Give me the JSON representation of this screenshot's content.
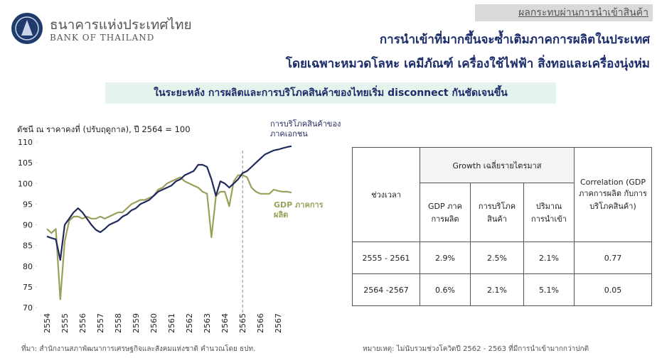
{
  "header": {
    "org_th": "ธนาคารแห่งประเทศไทย",
    "org_en": "BANK OF THAILAND",
    "section": "ผลกระทบผ่านการนำเข้าสินค้า",
    "title_1": "การนำเข้าที่มากขึ้นจะซ้ำเติมภาคการผลิตในประเทศ",
    "title_2": "โดยเฉพาะหมวดโลหะ เคมีภัณฑ์ เครื่องใช้ไฟฟ้า สิ่งทอและเครื่องนุ่งห่ม",
    "banner": "ในระยะหลัง การผลิตและการบริโภคสินค้าของไทยเริ่ม disconnect กันชัดเจนขึ้น"
  },
  "chart_data": {
    "type": "line",
    "subtitle": "ดัชนี ณ ราคาคงที่ (ปรับฤดูกาล), ปี 2564 = 100",
    "categories": [
      "2554",
      null,
      null,
      null,
      "2555",
      null,
      null,
      null,
      "2556",
      null,
      null,
      null,
      "2557",
      null,
      null,
      null,
      "2558",
      null,
      null,
      null,
      "2559",
      null,
      null,
      null,
      "2560",
      null,
      null,
      null,
      "2561",
      null,
      null,
      null,
      "2562",
      null,
      null,
      null,
      "2563",
      null,
      null,
      null,
      "2564",
      null,
      null,
      null,
      "2565",
      null,
      null,
      null,
      "2566",
      null,
      null,
      null,
      "2567",
      null,
      null,
      null
    ],
    "series": [
      {
        "name": "การบริโภคสินค้าของภาคเอกชน",
        "color": "#1f2a5c",
        "values": [
          87.2,
          86.8,
          86.5,
          81.5,
          90,
          91.5,
          93,
          94,
          93,
          91.5,
          90,
          88.8,
          88.2,
          89,
          90,
          90.5,
          91,
          92,
          92.5,
          93.5,
          94,
          95,
          95.5,
          96,
          97,
          98,
          98.5,
          99,
          99.5,
          100.5,
          101,
          102,
          102.5,
          103,
          104.5,
          104.5,
          104,
          101,
          97,
          100.5,
          100,
          99,
          100,
          101,
          102.5,
          103,
          104,
          105,
          106,
          107,
          107.5,
          108,
          108.2,
          108.5,
          108.8,
          109
        ]
      },
      {
        "name": "GDP ภาคการผลิต",
        "color": "#9aa05a",
        "values": [
          89,
          88,
          89,
          72,
          86,
          91,
          92,
          92,
          91.5,
          92,
          91.5,
          91.5,
          92,
          91.5,
          92,
          92.5,
          93,
          93,
          94,
          95,
          95.5,
          96,
          96,
          96.5,
          97,
          98.5,
          99,
          100,
          100.5,
          101,
          101.5,
          100.5,
          100,
          99.5,
          99,
          98,
          97.5,
          87,
          97,
          98,
          98,
          94.5,
          100.5,
          102,
          102,
          101.5,
          99,
          98,
          97.5,
          97.5,
          97.5,
          98.5,
          98.2,
          98,
          98,
          97.8
        ]
      }
    ],
    "ylim": [
      70,
      110
    ],
    "yticks": [
      70,
      75,
      80,
      85,
      90,
      95,
      100,
      105,
      110
    ],
    "grid": false
  },
  "table": {
    "period_header": "ช่วงเวลา",
    "growth_header": "Growth เฉลี่ยรายไตรมาส",
    "corr_header": "Correlation (GDP ภาคการผลิต กับการบริโภคสินค้า)",
    "sub_headers": [
      "GDP ภาคการผลิต",
      "การบริโภคสินค้า",
      "ปริมาณการนำเข้า"
    ],
    "rows": [
      [
        "2555 - 2561",
        "2.9%",
        "2.5%",
        "2.1%",
        "0.77"
      ],
      [
        "2564 -2567",
        "0.6%",
        "2.1%",
        "5.1%",
        "0.05"
      ]
    ]
  },
  "footer": {
    "source": "ที่มา: สำนักงานสภาพัฒนาการเศรษฐกิจและสังคมแห่งชาติ คำนวณโดย ธปท.",
    "note": "หมายเหตุ: ไม่นับรวมช่วงโควิดปี 2562 - 2563 ที่มีการนำเข้ามากกว่าปกติ"
  }
}
